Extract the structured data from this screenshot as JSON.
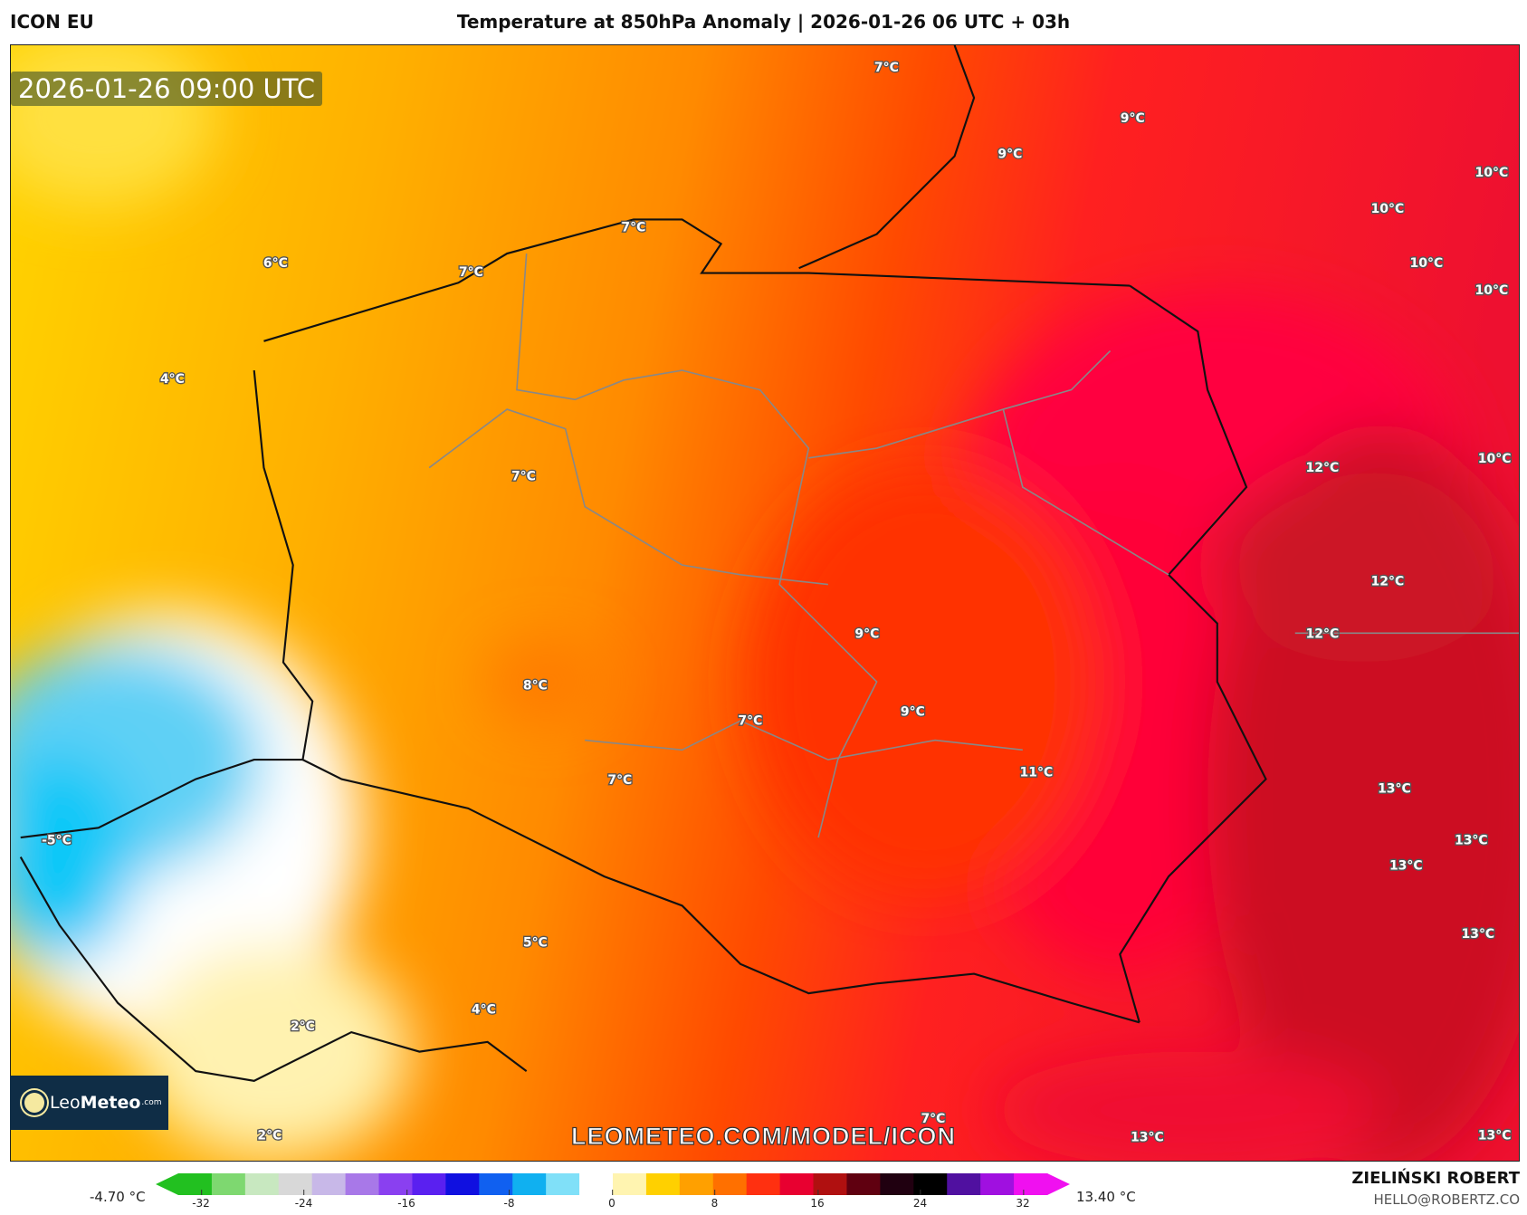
{
  "header": {
    "model": "ICON EU",
    "title": "Temperature at 850hPa Anomaly | 2026-01-26 06 UTC + 03h"
  },
  "map": {
    "timestamp": "2026-01-26 09:00 UTC",
    "watermark": "LEOMETEO.COM/MODEL/ICON",
    "logo": {
      "brand_light": "Leo",
      "brand_bold": "Meteo",
      "suffix": ".com"
    },
    "labels": [
      {
        "text": "7°C"
      },
      {
        "text": "9°C"
      },
      {
        "text": "9°C"
      },
      {
        "text": "10°C"
      },
      {
        "text": "10°C"
      },
      {
        "text": "10°C"
      },
      {
        "text": "10°C"
      },
      {
        "text": "7°C"
      },
      {
        "text": "6°C"
      },
      {
        "text": "7°C"
      },
      {
        "text": "4°C"
      },
      {
        "text": "7°C"
      },
      {
        "text": "12°C"
      },
      {
        "text": "10°C"
      },
      {
        "text": "12°C"
      },
      {
        "text": "12°C"
      },
      {
        "text": "9°C"
      },
      {
        "text": "8°C"
      },
      {
        "text": "9°C"
      },
      {
        "text": "7°C"
      },
      {
        "text": "11°C"
      },
      {
        "text": "7°C"
      },
      {
        "text": "13°C"
      },
      {
        "text": "13°C"
      },
      {
        "text": "13°C"
      },
      {
        "text": "13°C"
      },
      {
        "text": "-5°C"
      },
      {
        "text": "5°C"
      },
      {
        "text": "4°C"
      },
      {
        "text": "2°C"
      },
      {
        "text": "7°C"
      },
      {
        "text": "13°C"
      },
      {
        "text": "13°C"
      },
      {
        "text": "2°C"
      }
    ]
  },
  "colorbar": {
    "min_label": "-4.70 °C",
    "max_label": "13.40 °C",
    "ticks": [
      "-32",
      "-24",
      "-16",
      "-8",
      "0",
      "8",
      "16",
      "24",
      "32"
    ],
    "colors": [
      "#22c020",
      "#7ed870",
      "#c8e8c0",
      "#d8d8d8",
      "#c8b8e8",
      "#a878e8",
      "#8a40f0",
      "#5a20f0",
      "#1010e0",
      "#1060f0",
      "#10b0f0",
      "#80e0f8",
      "#ffffff",
      "#fff4b0",
      "#ffd000",
      "#ffa000",
      "#ff7000",
      "#ff3010",
      "#e80030",
      "#b01010",
      "#600010",
      "#200010",
      "#000000",
      "#5010a0",
      "#a010e0",
      "#f010f0"
    ]
  },
  "footer": {
    "author": "ZIELIŃSKI ROBERT",
    "email": "HELLO@ROBERTZ.CO"
  }
}
